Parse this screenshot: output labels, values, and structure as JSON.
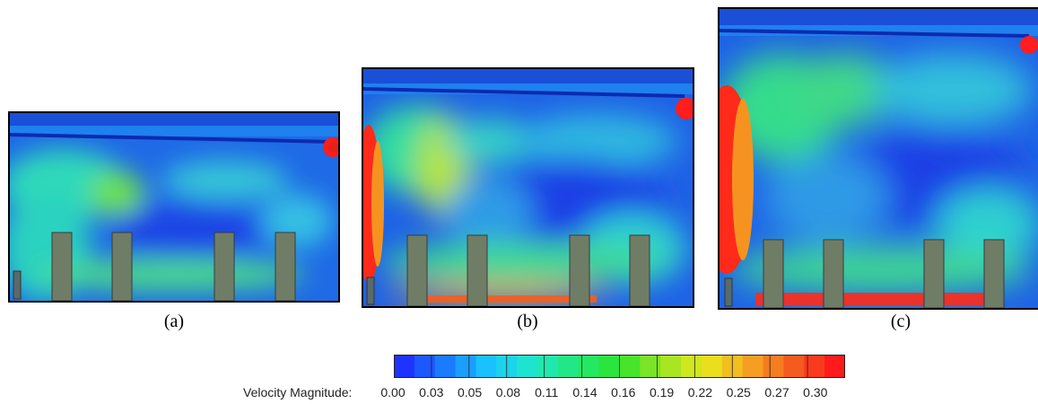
{
  "chart_data": {
    "type": "heatmap",
    "panels": [
      {
        "caption": "(a)",
        "columns": 4,
        "inlet_duct": true,
        "max_region": "top-right outlet",
        "aspect": "wide"
      },
      {
        "caption": "(b)",
        "columns": 4,
        "inlet_duct": true,
        "max_region": "left wall and top-right outlet",
        "aspect": "medium"
      },
      {
        "caption": "(c)",
        "columns": 4,
        "inlet_duct": true,
        "max_region": "left wall and floor",
        "aspect": "tall"
      }
    ],
    "colorbar": {
      "label": "Velocity Magnitude:",
      "ticks": [
        "0.00",
        "0.03",
        "0.05",
        "0.08",
        "0.11",
        "0.14",
        "0.16",
        "0.19",
        "0.22",
        "0.25",
        "0.27",
        "0.30"
      ],
      "min": 0.0,
      "max": 0.3,
      "colormap": [
        "#1f33ff",
        "#1a7fff",
        "#19c8ff",
        "#1fe8c6",
        "#21e878",
        "#2de42a",
        "#9ae424",
        "#e9e81c",
        "#f6a521",
        "#f55d1e",
        "#ff1b1b"
      ]
    }
  }
}
